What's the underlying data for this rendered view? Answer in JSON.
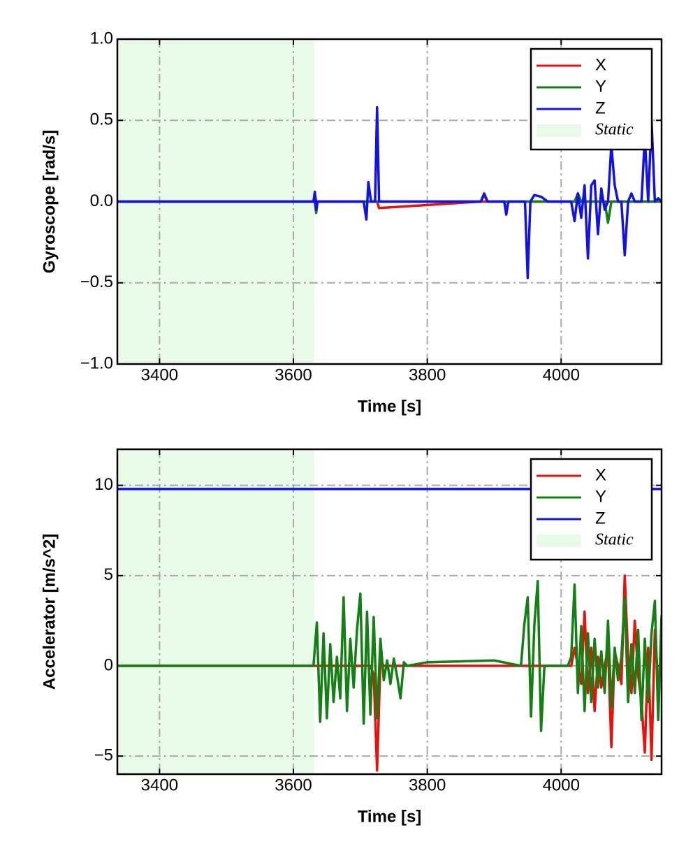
{
  "chart_data": [
    {
      "type": "line",
      "xlabel": "Time [s]",
      "ylabel": "Gyroscope [rad/s]",
      "xlim": [
        3337,
        4150
      ],
      "ylim": [
        -1,
        1
      ],
      "xticks": [
        3400,
        3600,
        3800,
        4000
      ],
      "yticks": [
        {
          "value": -1,
          "label": "−1.0"
        },
        {
          "value": -0.5,
          "label": "−0.5"
        },
        {
          "value": 0,
          "label": "0.0"
        },
        {
          "value": 0.5,
          "label": "0.5"
        },
        {
          "value": 1,
          "label": "1.0"
        }
      ],
      "grid": true,
      "legend": "upper right",
      "static_span": [
        3337,
        3631
      ],
      "static_label": "Static",
      "static_color": "#e8fbe8",
      "x": [
        3337,
        3630,
        3632,
        3634,
        3636,
        3705,
        3709,
        3712,
        3716,
        3722,
        3725,
        3728,
        3880,
        3885,
        3890,
        3915,
        3918,
        3921,
        3946,
        3950,
        3954,
        3960,
        3970,
        3980,
        4015,
        4020,
        4025,
        4030,
        4035,
        4040,
        4045,
        4050,
        4055,
        4060,
        4065,
        4070,
        4075,
        4080,
        4085,
        4090,
        4095,
        4100,
        4105,
        4110,
        4120,
        4125,
        4130,
        4135,
        4140,
        4145,
        4150
      ],
      "series": [
        {
          "name": "X",
          "color": "#e8120c",
          "values": [
            0,
            0,
            0.05,
            0,
            0,
            0,
            0,
            0,
            0,
            0,
            0,
            -0.04,
            0,
            0,
            0,
            0,
            0,
            0,
            0,
            0,
            0,
            0,
            0,
            0,
            0,
            0,
            0,
            0,
            0,
            0,
            0,
            0,
            0,
            0,
            0,
            0,
            0,
            0,
            0,
            0,
            0,
            0,
            0,
            0,
            0,
            0,
            0,
            0,
            0,
            0,
            0
          ]
        },
        {
          "name": "Y",
          "color": "#138013",
          "values": [
            0,
            0,
            0,
            -0.07,
            0,
            0,
            0,
            0,
            0,
            0,
            0,
            0,
            0,
            0.04,
            0,
            0,
            0,
            0,
            0,
            0,
            0,
            0,
            0,
            0,
            0,
            0,
            0.05,
            0,
            0,
            0,
            0,
            0,
            0,
            0,
            0,
            -0.13,
            0,
            0,
            0,
            0,
            0,
            0,
            0,
            0,
            0,
            0,
            0,
            0,
            0,
            0,
            0
          ]
        },
        {
          "name": "Z",
          "color": "#1212e8",
          "values": [
            0,
            0,
            0.06,
            -0.05,
            0,
            0,
            -0.11,
            0.12,
            0,
            0,
            0.58,
            0,
            0,
            0.05,
            0,
            0,
            -0.08,
            0,
            0,
            -0.47,
            0,
            0.04,
            0.03,
            0,
            0,
            -0.12,
            0.05,
            -0.1,
            0.1,
            -0.35,
            0.1,
            0.13,
            -0.2,
            0.08,
            -0.05,
            0,
            0.35,
            0.1,
            0,
            0,
            -0.33,
            0,
            0.05,
            0,
            0,
            0.4,
            0,
            0.5,
            0,
            0.02,
            0
          ]
        }
      ]
    },
    {
      "type": "line",
      "xlabel": "Time [s]",
      "ylabel": "Accelerator [m/s^2]",
      "xlim": [
        3337,
        4150
      ],
      "ylim": [
        -6,
        12
      ],
      "xticks": [
        3400,
        3600,
        3800,
        4000
      ],
      "yticks": [
        {
          "value": -5,
          "label": "−5"
        },
        0,
        5,
        10
      ],
      "grid": true,
      "legend": "upper right",
      "static_span": [
        3337,
        3631
      ],
      "static_label": "Static",
      "static_color": "#e8fbe8",
      "x": [
        3337,
        3620,
        3630,
        3635,
        3640,
        3645,
        3650,
        3655,
        3660,
        3665,
        3670,
        3675,
        3680,
        3685,
        3690,
        3695,
        3700,
        3705,
        3710,
        3715,
        3720,
        3725,
        3730,
        3735,
        3740,
        3745,
        3750,
        3755,
        3760,
        3765,
        3770,
        3800,
        3900,
        3940,
        3945,
        3950,
        3955,
        3960,
        3965,
        3970,
        3975,
        4000,
        4010,
        4015,
        4020,
        4025,
        4030,
        4035,
        4040,
        4045,
        4050,
        4055,
        4060,
        4065,
        4070,
        4075,
        4080,
        4085,
        4090,
        4095,
        4100,
        4105,
        4110,
        4115,
        4120,
        4125,
        4130,
        4135,
        4140,
        4145,
        4150
      ],
      "series": [
        {
          "name": "X",
          "color": "#e8120c",
          "values": [
            0,
            0,
            0,
            0,
            0,
            0,
            0,
            0,
            0,
            0,
            0,
            0,
            0,
            0,
            0,
            0,
            0,
            0,
            0,
            0,
            -0.5,
            -5.8,
            0.3,
            0,
            0,
            0,
            0,
            0,
            0,
            0,
            0,
            0,
            0,
            0,
            0,
            0,
            0,
            0,
            0,
            0,
            0,
            0,
            0,
            0,
            1.0,
            0,
            -1.0,
            3.0,
            -1.5,
            1.0,
            -2.5,
            0.5,
            -1.2,
            0,
            1.0,
            -4.5,
            0.8,
            0,
            -1.0,
            5.0,
            0.5,
            -1.5,
            2.5,
            -0.5,
            -2.0,
            -4.8,
            1.0,
            -5.2,
            2.0,
            -1.0,
            0
          ]
        },
        {
          "name": "Y",
          "color": "#138013",
          "values": [
            0,
            0,
            0,
            2.4,
            -3.1,
            1.8,
            -2.9,
            1.2,
            -2.0,
            0.5,
            -1.8,
            3.8,
            -2.5,
            1.5,
            -1.2,
            2.0,
            4.0,
            -3.2,
            3.0,
            -2.7,
            2.7,
            -2.9,
            1.5,
            -0.8,
            0.3,
            -1.0,
            0.4,
            -0.6,
            -1.8,
            0.2,
            0,
            0.2,
            0.3,
            0,
            2.3,
            3.8,
            -2.8,
            2.3,
            4.7,
            -3.6,
            0,
            0,
            0,
            0.5,
            4.5,
            -1.5,
            2.2,
            -2.5,
            1.8,
            -2.0,
            1.5,
            -1.2,
            0.8,
            -1.5,
            2.5,
            -2.3,
            1.0,
            -0.8,
            0.5,
            3.8,
            -2.0,
            1.2,
            -1.5,
            2.0,
            -3.0,
            1.5,
            -2.0,
            1.8,
            3.6,
            -3.0,
            2.8
          ]
        },
        {
          "name": "Z",
          "color": "#1212e8",
          "values": [
            9.8,
            9.8,
            9.8,
            9.8,
            9.8,
            9.8,
            9.8,
            9.8,
            9.8,
            9.8,
            9.8,
            9.8,
            9.8,
            9.8,
            9.8,
            9.8,
            9.8,
            9.8,
            9.8,
            9.8,
            9.8,
            9.8,
            9.8,
            9.8,
            9.8,
            9.8,
            9.8,
            9.8,
            9.8,
            9.8,
            9.8,
            9.8,
            9.8,
            9.8,
            9.8,
            9.8,
            9.8,
            9.8,
            9.8,
            9.8,
            9.8,
            9.8,
            9.8,
            9.8,
            9.8,
            9.8,
            9.8,
            9.8,
            9.8,
            9.8,
            9.8,
            9.8,
            9.8,
            9.8,
            9.8,
            9.8,
            9.8,
            9.8,
            9.8,
            9.8,
            9.8,
            9.8,
            9.8,
            9.8,
            9.8,
            9.8,
            9.8,
            9.8,
            9.8,
            9.8,
            9.8
          ]
        }
      ]
    }
  ]
}
